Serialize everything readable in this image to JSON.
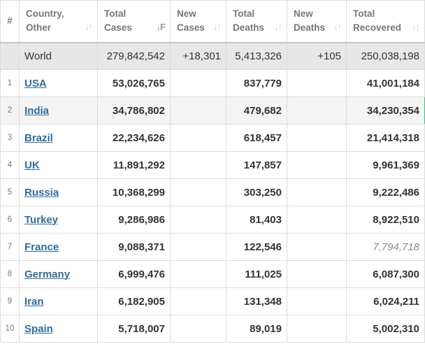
{
  "header": {
    "index": "#",
    "country": [
      "Country,",
      "Other"
    ],
    "total_cases": [
      "Total",
      "Cases"
    ],
    "new_cases": [
      "New",
      "Cases"
    ],
    "total_deaths": [
      "Total",
      "Deaths"
    ],
    "new_deaths": [
      "New",
      "Deaths"
    ],
    "total_recovered": [
      "Total",
      "Recovered"
    ]
  },
  "world": {
    "country": "World",
    "total_cases": "279,842,542",
    "new_cases": "+18,301",
    "total_deaths": "5,413,326",
    "new_deaths": "+105",
    "total_recovered": "250,038,198"
  },
  "rows": [
    {
      "rank": "1",
      "country": "USA",
      "total_cases": "53,026,765",
      "new_cases": "",
      "total_deaths": "837,779",
      "new_deaths": "",
      "total_recovered": "41,001,184"
    },
    {
      "rank": "2",
      "country": "India",
      "total_cases": "34,786,802",
      "new_cases": "",
      "total_deaths": "479,682",
      "new_deaths": "",
      "total_recovered": "34,230,354"
    },
    {
      "rank": "3",
      "country": "Brazil",
      "total_cases": "22,234,626",
      "new_cases": "",
      "total_deaths": "618,457",
      "new_deaths": "",
      "total_recovered": "21,414,318"
    },
    {
      "rank": "4",
      "country": "UK",
      "total_cases": "11,891,292",
      "new_cases": "",
      "total_deaths": "147,857",
      "new_deaths": "",
      "total_recovered": "9,961,369"
    },
    {
      "rank": "5",
      "country": "Russia",
      "total_cases": "10,368,299",
      "new_cases": "",
      "total_deaths": "303,250",
      "new_deaths": "",
      "total_recovered": "9,222,486"
    },
    {
      "rank": "6",
      "country": "Turkey",
      "total_cases": "9,286,986",
      "new_cases": "",
      "total_deaths": "81,403",
      "new_deaths": "",
      "total_recovered": "8,922,510"
    },
    {
      "rank": "7",
      "country": "France",
      "total_cases": "9,088,371",
      "new_cases": "",
      "total_deaths": "122,546",
      "new_deaths": "",
      "total_recovered": "7,794,718"
    },
    {
      "rank": "8",
      "country": "Germany",
      "total_cases": "6,999,476",
      "new_cases": "",
      "total_deaths": "111,025",
      "new_deaths": "",
      "total_recovered": "6,087,300"
    },
    {
      "rank": "9",
      "country": "Iran",
      "total_cases": "6,182,905",
      "new_cases": "",
      "total_deaths": "131,348",
      "new_deaths": "",
      "total_recovered": "6,024,211"
    },
    {
      "rank": "10",
      "country": "Spain",
      "total_cases": "5,718,007",
      "new_cases": "",
      "total_deaths": "89,019",
      "new_deaths": "",
      "total_recovered": "5,002,310"
    }
  ],
  "icons": {
    "sort_icon": "sort-arrows-icon",
    "sort_active_icon": "sort-descending-icon"
  },
  "colors": {
    "link": "#2f6c9e",
    "world_row_bg": "#e7e7e7",
    "header_text": "#777777"
  }
}
